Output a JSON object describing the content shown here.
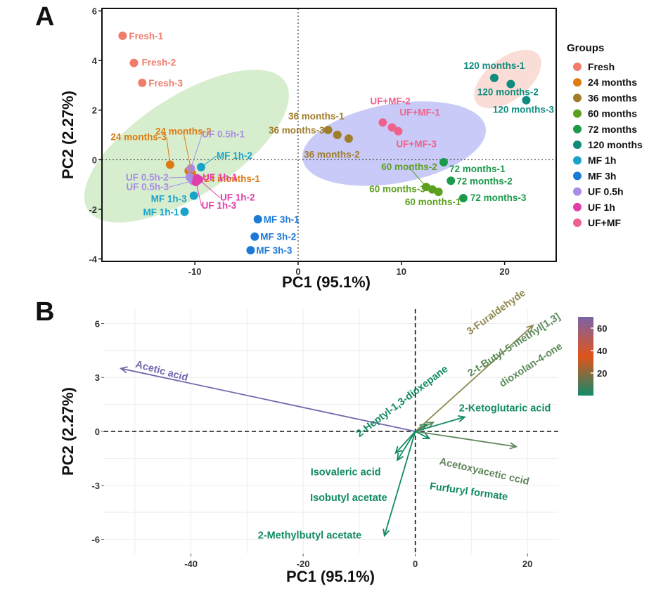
{
  "chart_data": [
    {
      "panel": "A",
      "type": "scatter",
      "xlabel": "PC1 (95.1%)",
      "ylabel": "PC2 (2.27%)",
      "xlim": [
        -19,
        25
      ],
      "ylim": [
        -4.1,
        6.1
      ],
      "x_ticks": [
        -10,
        0,
        10,
        20
      ],
      "y_ticks": [
        -4,
        -2,
        0,
        2,
        4,
        6
      ],
      "reference_lines": {
        "x": 0,
        "y": 0,
        "style": "dotted"
      },
      "legend": {
        "title": "Groups",
        "placement": "right",
        "entries": [
          {
            "name": "Fresh",
            "color": "#f07c6c"
          },
          {
            "name": "24 months",
            "color": "#de7a12"
          },
          {
            "name": "36 months",
            "color": "#a07d28"
          },
          {
            "name": "60 months",
            "color": "#5ca11e"
          },
          {
            "name": "72 months",
            "color": "#1c9a4c"
          },
          {
            "name": "120 months",
            "color": "#0f8c7e"
          },
          {
            "name": "MF 1h",
            "color": "#19a3c9"
          },
          {
            "name": "MF 3h",
            "color": "#1d79d6"
          },
          {
            "name": "UF 0.5h",
            "color": "#a98ce6"
          },
          {
            "name": "UF 1h",
            "color": "#e23ea8"
          },
          {
            "name": "UF+MF",
            "color": "#f0628e"
          }
        ]
      },
      "ellipses": [
        {
          "group": "cluster-1",
          "color": "#b7e0a6",
          "center": [
            -10.8,
            0.55
          ],
          "semi_major": 11.4,
          "semi_minor_y": 2.0,
          "angle": -33
        },
        {
          "group": "cluster-2",
          "color": "#9d9ff0",
          "center": [
            9.3,
            0.65
          ],
          "semi_major": 9.0,
          "semi_minor_y": 1.6,
          "angle": -10
        },
        {
          "group": "cluster-3",
          "color": "#f6c1b4",
          "center": [
            20.3,
            3.25
          ],
          "semi_major": 3.8,
          "semi_minor_y": 0.85,
          "angle": -38
        }
      ],
      "points": [
        {
          "label": "Fresh-1",
          "group": "Fresh",
          "x": -17.0,
          "y": 5.0
        },
        {
          "label": "Fresh-2",
          "group": "Fresh",
          "x": -15.9,
          "y": 3.9
        },
        {
          "label": "Fresh-3",
          "group": "Fresh",
          "x": -15.1,
          "y": 3.1
        },
        {
          "label": "24 months-1",
          "group": "24 months",
          "x": -10.6,
          "y": -0.45
        },
        {
          "label": "24 months-2",
          "group": "24 months",
          "x": -10.3,
          "y": -0.55
        },
        {
          "label": "24 months-3",
          "group": "24 months",
          "x": -12.4,
          "y": -0.2
        },
        {
          "label": "36 months-1",
          "group": "36 months",
          "x": 3.8,
          "y": 1.0
        },
        {
          "label": "36 months-2",
          "group": "36 months",
          "x": 4.9,
          "y": 0.85
        },
        {
          "label": "36 months-3",
          "group": "36 months",
          "x": 2.9,
          "y": 1.2
        },
        {
          "label": "60 months-1",
          "group": "60 months",
          "x": 13.6,
          "y": -1.3
        },
        {
          "label": "60 months-2",
          "group": "60 months",
          "x": 12.4,
          "y": -1.1
        },
        {
          "label": "60 months-3",
          "group": "60 months",
          "x": 13.0,
          "y": -1.2
        },
        {
          "label": "72 months-1",
          "group": "72 months",
          "x": 14.1,
          "y": -0.1
        },
        {
          "label": "72 months-2",
          "group": "72 months",
          "x": 14.8,
          "y": -0.85
        },
        {
          "label": "72 months-3",
          "group": "72 months",
          "x": 16.0,
          "y": -1.55
        },
        {
          "label": "120 months-1",
          "group": "120 months",
          "x": 19.0,
          "y": 3.3
        },
        {
          "label": "120 months-2",
          "group": "120 months",
          "x": 20.6,
          "y": 3.05
        },
        {
          "label": "120 months-3",
          "group": "120 months",
          "x": 22.1,
          "y": 2.4
        },
        {
          "label": "MF 1h-1",
          "group": "MF 1h",
          "x": -11.0,
          "y": -2.1
        },
        {
          "label": "MF 1h-2",
          "group": "MF 1h",
          "x": -9.4,
          "y": -0.3
        },
        {
          "label": "MF 1h-3",
          "group": "MF 1h",
          "x": -10.1,
          "y": -1.45
        },
        {
          "label": "MF 3h-1",
          "group": "MF 3h",
          "x": -3.9,
          "y": -2.4
        },
        {
          "label": "MF 3h-2",
          "group": "MF 3h",
          "x": -4.2,
          "y": -3.1
        },
        {
          "label": "MF 3h-3",
          "group": "MF 3h",
          "x": -4.6,
          "y": -3.65
        },
        {
          "label": "UF 0.5h-1",
          "group": "UF 0.5h",
          "x": -10.4,
          "y": -0.35
        },
        {
          "label": "UF 0.5h-2",
          "group": "UF 0.5h",
          "x": -10.5,
          "y": -0.7
        },
        {
          "label": "UF 0.5h-3",
          "group": "UF 0.5h",
          "x": -10.2,
          "y": -0.85
        },
        {
          "label": "UF 1h-1",
          "group": "UF 1h",
          "x": -9.8,
          "y": -0.75
        },
        {
          "label": "UF 1h-2",
          "group": "UF 1h",
          "x": -9.6,
          "y": -0.8
        },
        {
          "label": "UF 1h-3",
          "group": "UF 1h",
          "x": -9.9,
          "y": -0.9
        },
        {
          "label": "UF+MF-1",
          "group": "UF+MF",
          "x": 9.7,
          "y": 1.15
        },
        {
          "label": "UF+MF-2",
          "group": "UF+MF",
          "x": 8.2,
          "y": 1.5
        },
        {
          "label": "UF+MF-3",
          "group": "UF+MF",
          "x": 9.1,
          "y": 1.3
        }
      ]
    },
    {
      "panel": "B",
      "type": "scatter",
      "xlabel": "PC1 (95.1%)",
      "ylabel": "PC2 (2.27%)",
      "xlim": [
        -55.5,
        25.5
      ],
      "ylim": [
        -6.8,
        6.8
      ],
      "x_ticks": [
        -40,
        -20,
        0,
        20
      ],
      "y_ticks": [
        6,
        3,
        0,
        -3,
        -6
      ],
      "reference_lines": {
        "x": 0,
        "y": 0,
        "style": "dashed"
      },
      "colorbar": {
        "ticks": [
          20,
          40,
          60
        ],
        "range": [
          0,
          70
        ],
        "colors": [
          "#13896a",
          "#e0541b",
          "#7b63a6"
        ]
      },
      "vectors": [
        {
          "label": "Acetic acid",
          "x": -52.5,
          "y": 3.5,
          "color": "#7368ad"
        },
        {
          "label": "2-Heptyl-1,3-dioxepane",
          "x": 2.0,
          "y": 0.4,
          "color": "#128a62"
        },
        {
          "label": "3-Furaldehyde",
          "x": 21.0,
          "y": 5.9,
          "color": "#8f8a52"
        },
        {
          "label": "2-t-Butyl-5-methyl[1,3]",
          "x": 3.2,
          "y": 0.5,
          "color": "#5b8a5a"
        },
        {
          "label": "dioxolan-4-one",
          "x": 3.2,
          "y": 0.5,
          "color": "#5b8a5a"
        },
        {
          "label": "2-Ketoglutaric acid",
          "x": 8.8,
          "y": 0.8,
          "color": "#128a62"
        },
        {
          "label": "Acetoxyacetic ccid",
          "x": 18.0,
          "y": -0.85,
          "color": "#61865e"
        },
        {
          "label": "Furfuryl formate",
          "x": 2.5,
          "y": -0.4,
          "color": "#128a62"
        },
        {
          "label": "Isovaleric acid",
          "x": -3.5,
          "y": -1.2,
          "color": "#128a62"
        },
        {
          "label": "Isobutyl acetate",
          "x": -3.2,
          "y": -1.6,
          "color": "#128a62"
        },
        {
          "label": "2-Methylbutyl acetate",
          "x": -5.5,
          "y": -5.8,
          "color": "#128a62"
        }
      ]
    }
  ]
}
